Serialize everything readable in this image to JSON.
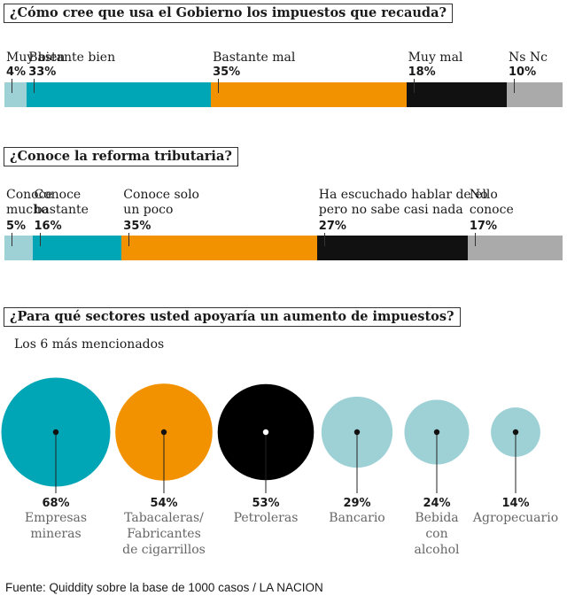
{
  "chart_data": [
    {
      "type": "bar",
      "title": "¿Cómo cree que usa el Gobierno los impuestos que recauda?",
      "categories": [
        "Muy bien",
        "Bastante bien",
        "Bastante mal",
        "Muy mal",
        "Ns Nc"
      ],
      "values": [
        4,
        33,
        35,
        18,
        10
      ],
      "value_labels": [
        "4%",
        "33%",
        "35%",
        "18%",
        "10%"
      ],
      "colors": [
        "#9dd1d6",
        "#00a6b5",
        "#f39200",
        "#111111",
        "#aaaaaa"
      ]
    },
    {
      "type": "bar",
      "title": "¿Conoce la reforma tributaria?",
      "categories": [
        "Conoce mucho",
        "Conoce bastante",
        "Conoce solo un poco",
        "Ha escuchado hablar de ello pero no sabe casi nada",
        "No conoce"
      ],
      "label_lines": [
        [
          "Conoce",
          "mucho"
        ],
        [
          "Conoce",
          "bastante"
        ],
        [
          "Conoce solo",
          "un poco"
        ],
        [
          "Ha escuchado hablar de ello",
          "pero no sabe casi nada"
        ],
        [
          "No",
          "conoce"
        ]
      ],
      "values": [
        5,
        16,
        35,
        27,
        17
      ],
      "value_labels": [
        "5%",
        "16%",
        "35%",
        "27%",
        "17%"
      ],
      "colors": [
        "#9dd1d6",
        "#00a6b5",
        "#f39200",
        "#111111",
        "#aaaaaa"
      ]
    },
    {
      "type": "scatter",
      "title": "¿Para qué sectores usted apoyaría un aumento de impuestos?",
      "subtitle": "Los 6 más mencionados",
      "categories": [
        "Empresas mineras",
        "Tabacaleras/ Fabricantes de cigarrillos",
        "Petroleras",
        "Bancario",
        "Bebida con alcohol",
        "Agropecuario"
      ],
      "label_lines": [
        [
          "Empresas",
          "mineras"
        ],
        [
          "Tabacaleras/",
          "Fabricantes",
          "de cigarrillos"
        ],
        [
          "Petroleras"
        ],
        [
          "Bancario"
        ],
        [
          "Bebida",
          "con",
          "alcohol"
        ],
        [
          "Agropecuario"
        ]
      ],
      "values": [
        68,
        54,
        53,
        29,
        24,
        14
      ],
      "value_labels": [
        "68%",
        "54%",
        "53%",
        "29%",
        "24%",
        "14%"
      ],
      "colors": [
        "#00a6b5",
        "#f39200",
        "#000000",
        "#9dd1d6",
        "#9dd1d6",
        "#9dd1d6"
      ]
    }
  ],
  "source": "Fuente: Quiddity sobre la base de 1000 casos / LA NACION"
}
